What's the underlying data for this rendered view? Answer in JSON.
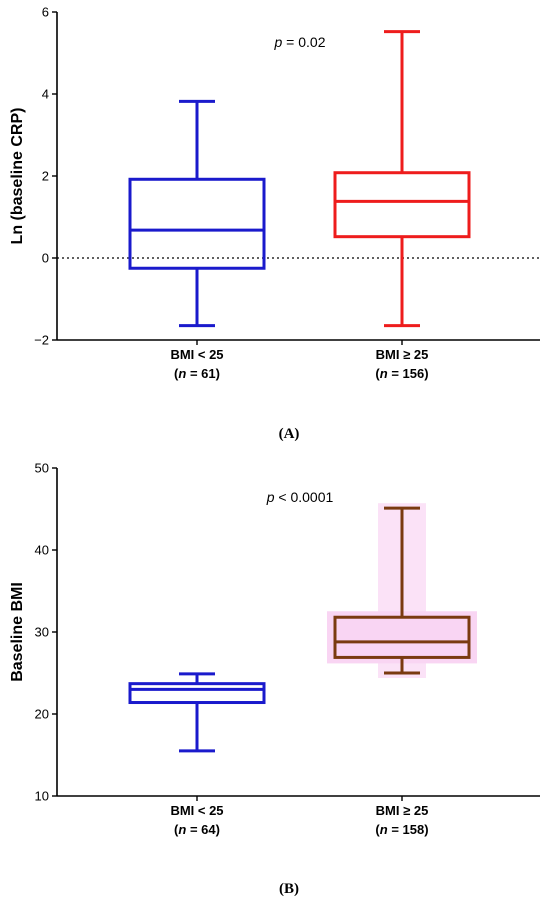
{
  "chart_data": [
    {
      "type": "boxplot",
      "panel_label": "(A)",
      "ylabel": "Ln (baseline CRP)",
      "ylim": [
        -2,
        6
      ],
      "yticks": [
        -2,
        0,
        2,
        4,
        6
      ],
      "ytick_labels": [
        "−2",
        "0",
        "2",
        "4",
        "6"
      ],
      "reference_line": 0,
      "annotation": {
        "italic": "p",
        "text": " = 0.02"
      },
      "categories": [
        {
          "label": "BMI < 25",
          "n_italic": "n",
          "n_text": " = 61",
          "open": "(",
          "close": ")",
          "color": "#1a1acc",
          "min": -1.65,
          "q1": -0.25,
          "median": 0.68,
          "q3": 1.92,
          "max": 3.82
        },
        {
          "label": "BMI ≥ 25",
          "n_italic": "n",
          "n_text": " = 156",
          "open": "(",
          "close": ")",
          "color": "#ee1c1c",
          "min": -1.65,
          "q1": 0.52,
          "median": 1.38,
          "q3": 2.08,
          "max": 5.52
        }
      ]
    },
    {
      "type": "boxplot",
      "panel_label": "(B)",
      "ylabel": "Baseline BMI",
      "ylim": [
        10,
        50
      ],
      "yticks": [
        10,
        20,
        30,
        40,
        50
      ],
      "ytick_labels": [
        "10",
        "20",
        "30",
        "40",
        "50"
      ],
      "annotation": {
        "italic": "p",
        "text": " < 0.0001"
      },
      "categories": [
        {
          "label": "BMI < 25",
          "n_italic": "n",
          "n_text": " = 64",
          "open": "(",
          "close": ")",
          "color": "#1a1acc",
          "min": 15.5,
          "q1": 21.4,
          "median": 23.0,
          "q3": 23.7,
          "max": 24.9
        },
        {
          "label": "BMI ≥ 25",
          "n_italic": "n",
          "n_text": " = 158",
          "open": "(",
          "close": ")",
          "color": "#7a3a10",
          "halo": "#f7c8f0",
          "min": 25.0,
          "q1": 26.9,
          "median": 28.8,
          "q3": 31.8,
          "max": 45.1
        }
      ]
    }
  ]
}
